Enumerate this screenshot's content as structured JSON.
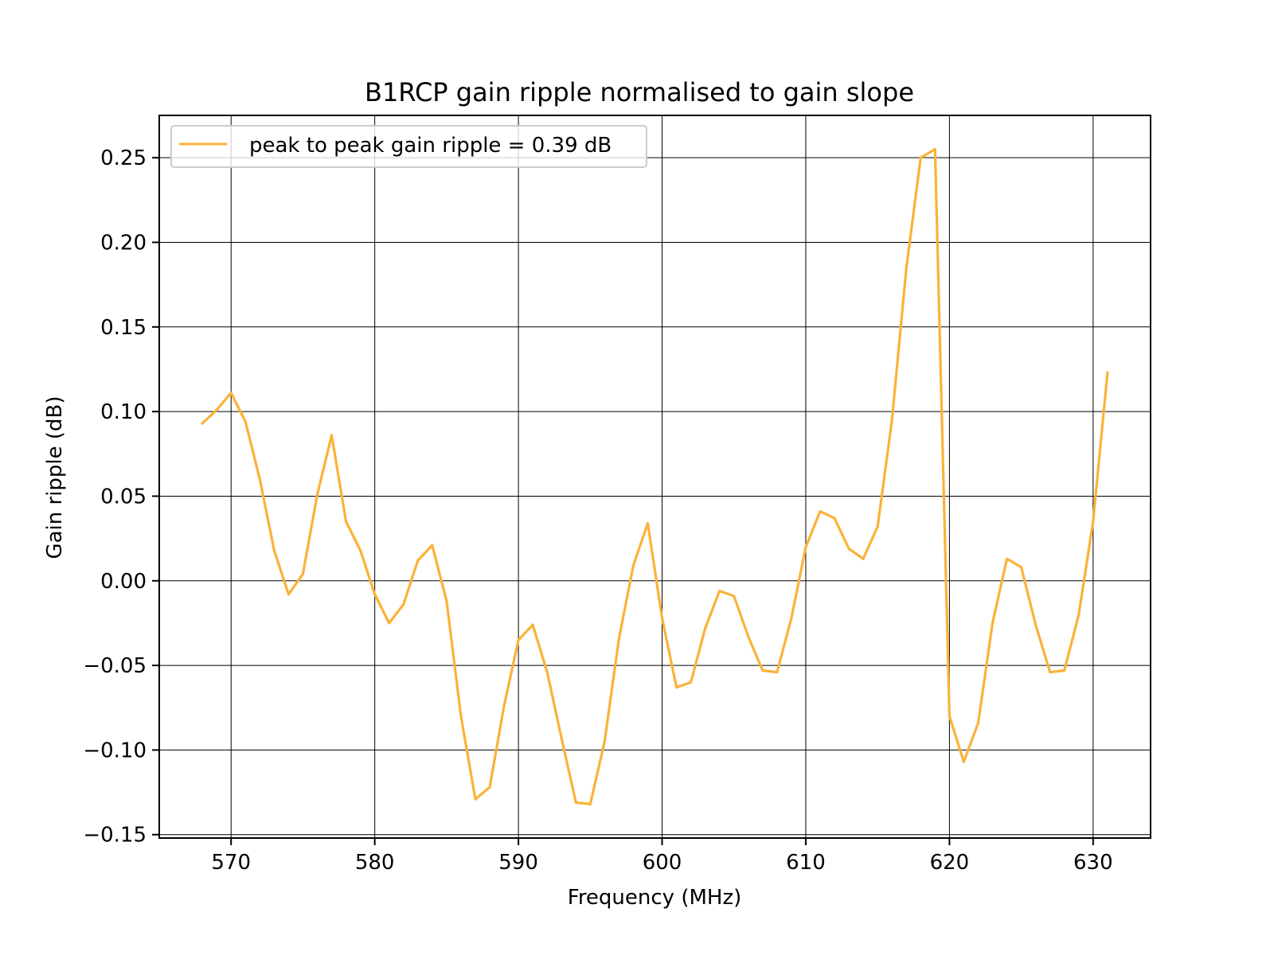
{
  "chart_data": {
    "type": "line",
    "title": "B1RCP gain ripple normalised to gain slope",
    "xlabel": "Frequency (MHz)",
    "ylabel": "Gain ripple (dB)",
    "xlim": [
      565,
      634
    ],
    "ylim": [
      -0.152,
      0.275
    ],
    "xticks": [
      570,
      580,
      590,
      600,
      610,
      620,
      630
    ],
    "xtick_labels": [
      "570",
      "580",
      "590",
      "600",
      "610",
      "620",
      "630"
    ],
    "yticks": [
      -0.15,
      -0.1,
      -0.05,
      0.0,
      0.05,
      0.1,
      0.15,
      0.2,
      0.25
    ],
    "ytick_labels": [
      "−0.15",
      "−0.10",
      "−0.05",
      "0.00",
      "0.05",
      "0.10",
      "0.15",
      "0.20",
      "0.25"
    ],
    "grid": true,
    "legend_position": "top-left",
    "series": [
      {
        "name": "peak to peak gain ripple = 0.39 dB",
        "color": "#fbb238",
        "x": [
          568,
          569,
          570,
          571,
          572,
          573,
          574,
          575,
          576,
          577,
          578,
          579,
          580,
          581,
          582,
          583,
          584,
          585,
          586,
          587,
          588,
          589,
          590,
          591,
          592,
          593,
          594,
          595,
          596,
          597,
          598,
          599,
          600,
          601,
          602,
          603,
          604,
          605,
          606,
          607,
          608,
          609,
          610,
          611,
          612,
          613,
          614,
          615,
          616,
          617,
          618,
          619,
          620,
          621,
          622,
          623,
          624,
          625,
          626,
          627,
          628,
          629,
          630,
          631
        ],
        "y": [
          0.093,
          0.101,
          0.111,
          0.094,
          0.06,
          0.018,
          -0.008,
          0.004,
          0.051,
          0.086,
          0.035,
          0.018,
          -0.008,
          -0.025,
          -0.014,
          0.012,
          0.021,
          -0.012,
          -0.08,
          -0.129,
          -0.122,
          -0.074,
          -0.035,
          -0.026,
          -0.054,
          -0.093,
          -0.131,
          -0.132,
          -0.095,
          -0.034,
          0.009,
          0.034,
          -0.022,
          -0.063,
          -0.06,
          -0.028,
          -0.006,
          -0.009,
          -0.033,
          -0.053,
          -0.054,
          -0.022,
          0.02,
          0.041,
          0.037,
          0.019,
          0.013,
          0.032,
          0.095,
          0.185,
          0.25,
          0.255,
          -0.08,
          -0.107,
          -0.084,
          -0.025,
          0.013,
          0.008,
          -0.026,
          -0.054,
          -0.053,
          -0.02,
          0.035,
          0.123
        ]
      }
    ]
  }
}
